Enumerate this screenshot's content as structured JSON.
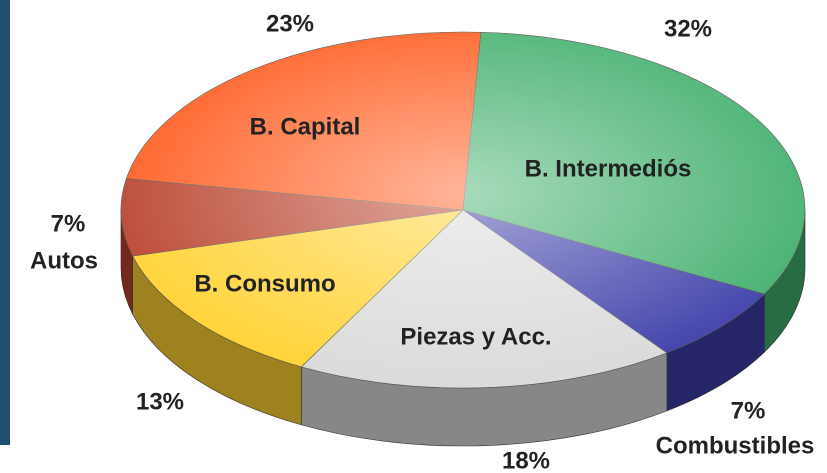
{
  "chart_data": {
    "type": "pie",
    "categories": [
      "B. Intermediós",
      "Combustibles",
      "Piezas y Acc.",
      "B. Consumo",
      "Autos",
      "B. Capital"
    ],
    "values": [
      32,
      7,
      18,
      13,
      7,
      23
    ],
    "value_labels": [
      "32%",
      "7%",
      "18%",
      "13%",
      "7%",
      "23%"
    ],
    "colors": [
      "#3fae6a",
      "#3b3ba8",
      "#d9d9d9",
      "#ffd12e",
      "#b8402a",
      "#ff5a1c"
    ]
  }
}
